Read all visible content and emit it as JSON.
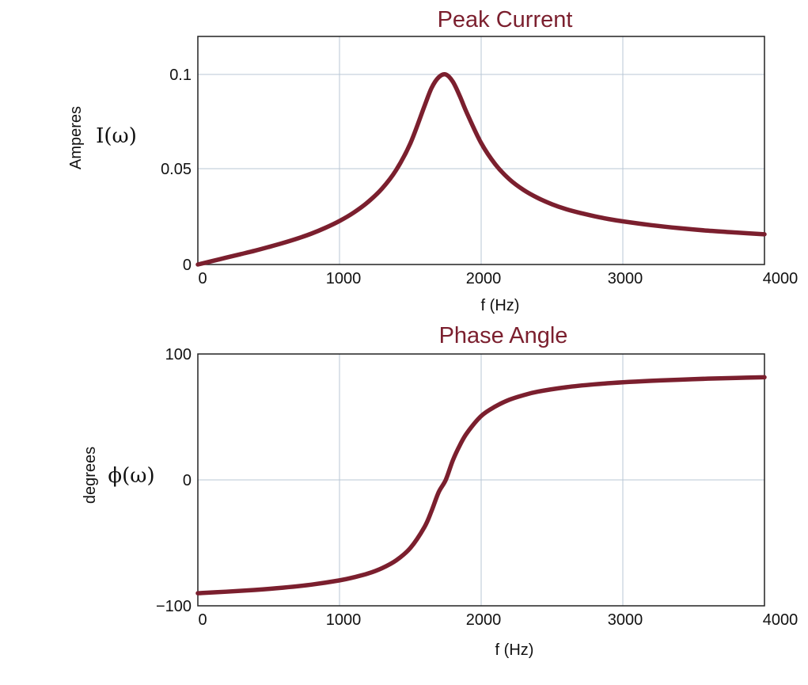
{
  "colors": {
    "curve": "#7b1f2e",
    "title": "#7b1f2e",
    "grid": "#b9c7d6"
  },
  "chart_data": [
    {
      "type": "line",
      "title": "Peak Current",
      "xlabel": "f (Hz)",
      "ylabel": "Amperes",
      "function_label": "I(ω)",
      "xlim": [
        0,
        4000
      ],
      "ylim": [
        0,
        0.1
      ],
      "x_ticks": [
        "0",
        "1000",
        "2000",
        "3000",
        "4000"
      ],
      "y_ticks": [
        "0",
        "0.05",
        "0.1"
      ],
      "grid": true,
      "series": [
        {
          "x": [
            0,
            100,
            200,
            300,
            400,
            500,
            600,
            700,
            800,
            900,
            1000,
            1100,
            1200,
            1300,
            1400,
            1500,
            1600,
            1650,
            1700,
            1750,
            1800,
            1850,
            1900,
            2000,
            2100,
            2200,
            2300,
            2400,
            2500,
            2600,
            2700,
            2800,
            2900,
            3000,
            3200,
            3400,
            3600,
            3800,
            4000
          ],
          "values": [
            0,
            0.0018,
            0.0036,
            0.0054,
            0.0072,
            0.0092,
            0.0113,
            0.0136,
            0.0162,
            0.0193,
            0.0229,
            0.0273,
            0.0328,
            0.0399,
            0.0497,
            0.0637,
            0.0834,
            0.0929,
            0.0985,
            0.1,
            0.0962,
            0.0885,
            0.0796,
            0.0639,
            0.0527,
            0.0448,
            0.0392,
            0.035,
            0.0317,
            0.0291,
            0.0271,
            0.0254,
            0.0239,
            0.0227,
            0.0207,
            0.0191,
            0.0178,
            0.0168,
            0.0159
          ]
        }
      ]
    },
    {
      "type": "line",
      "title": "Phase Angle",
      "xlabel": "f (Hz)",
      "ylabel": "degrees",
      "function_label": "ϕ(ω)",
      "xlim": [
        0,
        4000
      ],
      "ylim": [
        -100,
        100
      ],
      "x_ticks": [
        "0",
        "1000",
        "2000",
        "3000",
        "4000"
      ],
      "y_ticks": [
        "−100",
        "0",
        "100"
      ],
      "grid": true,
      "series": [
        {
          "x": [
            0,
            200,
            400,
            600,
            800,
            1000,
            1100,
            1200,
            1300,
            1400,
            1500,
            1600,
            1650,
            1700,
            1750,
            1800,
            1850,
            1900,
            2000,
            2100,
            2200,
            2300,
            2400,
            2600,
            2800,
            3000,
            3200,
            3400,
            3600,
            3800,
            4000
          ],
          "values": [
            -90,
            -88.8,
            -87.4,
            -85.6,
            -83.2,
            -79.8,
            -77.4,
            -74.4,
            -70.1,
            -63.9,
            -54.1,
            -37.4,
            -24.6,
            -9.8,
            0,
            15.5,
            27.6,
            37.3,
            50.7,
            58.3,
            63.7,
            67.3,
            70.1,
            73.6,
            75.9,
            77.5,
            78.7,
            79.6,
            80.4,
            81,
            81.5
          ]
        }
      ]
    }
  ]
}
